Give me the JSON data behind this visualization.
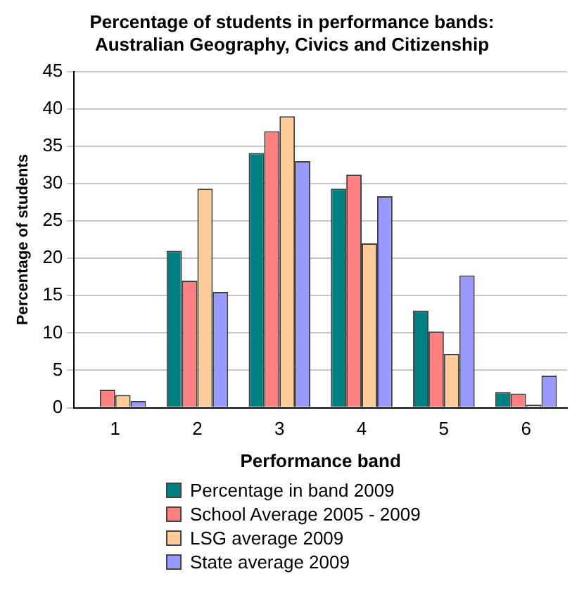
{
  "chart_data": {
    "type": "bar",
    "title": "Percentage of students in performance bands: Australian Geography, Civics and Citizenship",
    "xlabel": "Performance band",
    "ylabel": "Percentage of students",
    "categories": [
      "1",
      "2",
      "3",
      "4",
      "5",
      "6"
    ],
    "series": [
      {
        "name": "Percentage in band 2009",
        "color": "#008080",
        "values": [
          0,
          21,
          34.1,
          29.3,
          13,
          2.1
        ]
      },
      {
        "name": "School Average 2005 - 2009",
        "color": "#ff8080",
        "values": [
          2.4,
          17,
          37,
          31.2,
          10.2,
          1.9
        ]
      },
      {
        "name": "LSG average 2009",
        "color": "#ffcc99",
        "values": [
          1.7,
          29.3,
          39,
          22,
          7.2,
          0.4
        ]
      },
      {
        "name": "State average 2009",
        "color": "#9999ff",
        "values": [
          0.9,
          15.5,
          33,
          28.3,
          17.7,
          4.3
        ]
      }
    ],
    "ylim": [
      0,
      45
    ],
    "yticks": [
      0,
      5,
      10,
      15,
      20,
      25,
      30,
      35,
      40,
      45
    ],
    "grid": "y",
    "legend": "bottom"
  }
}
